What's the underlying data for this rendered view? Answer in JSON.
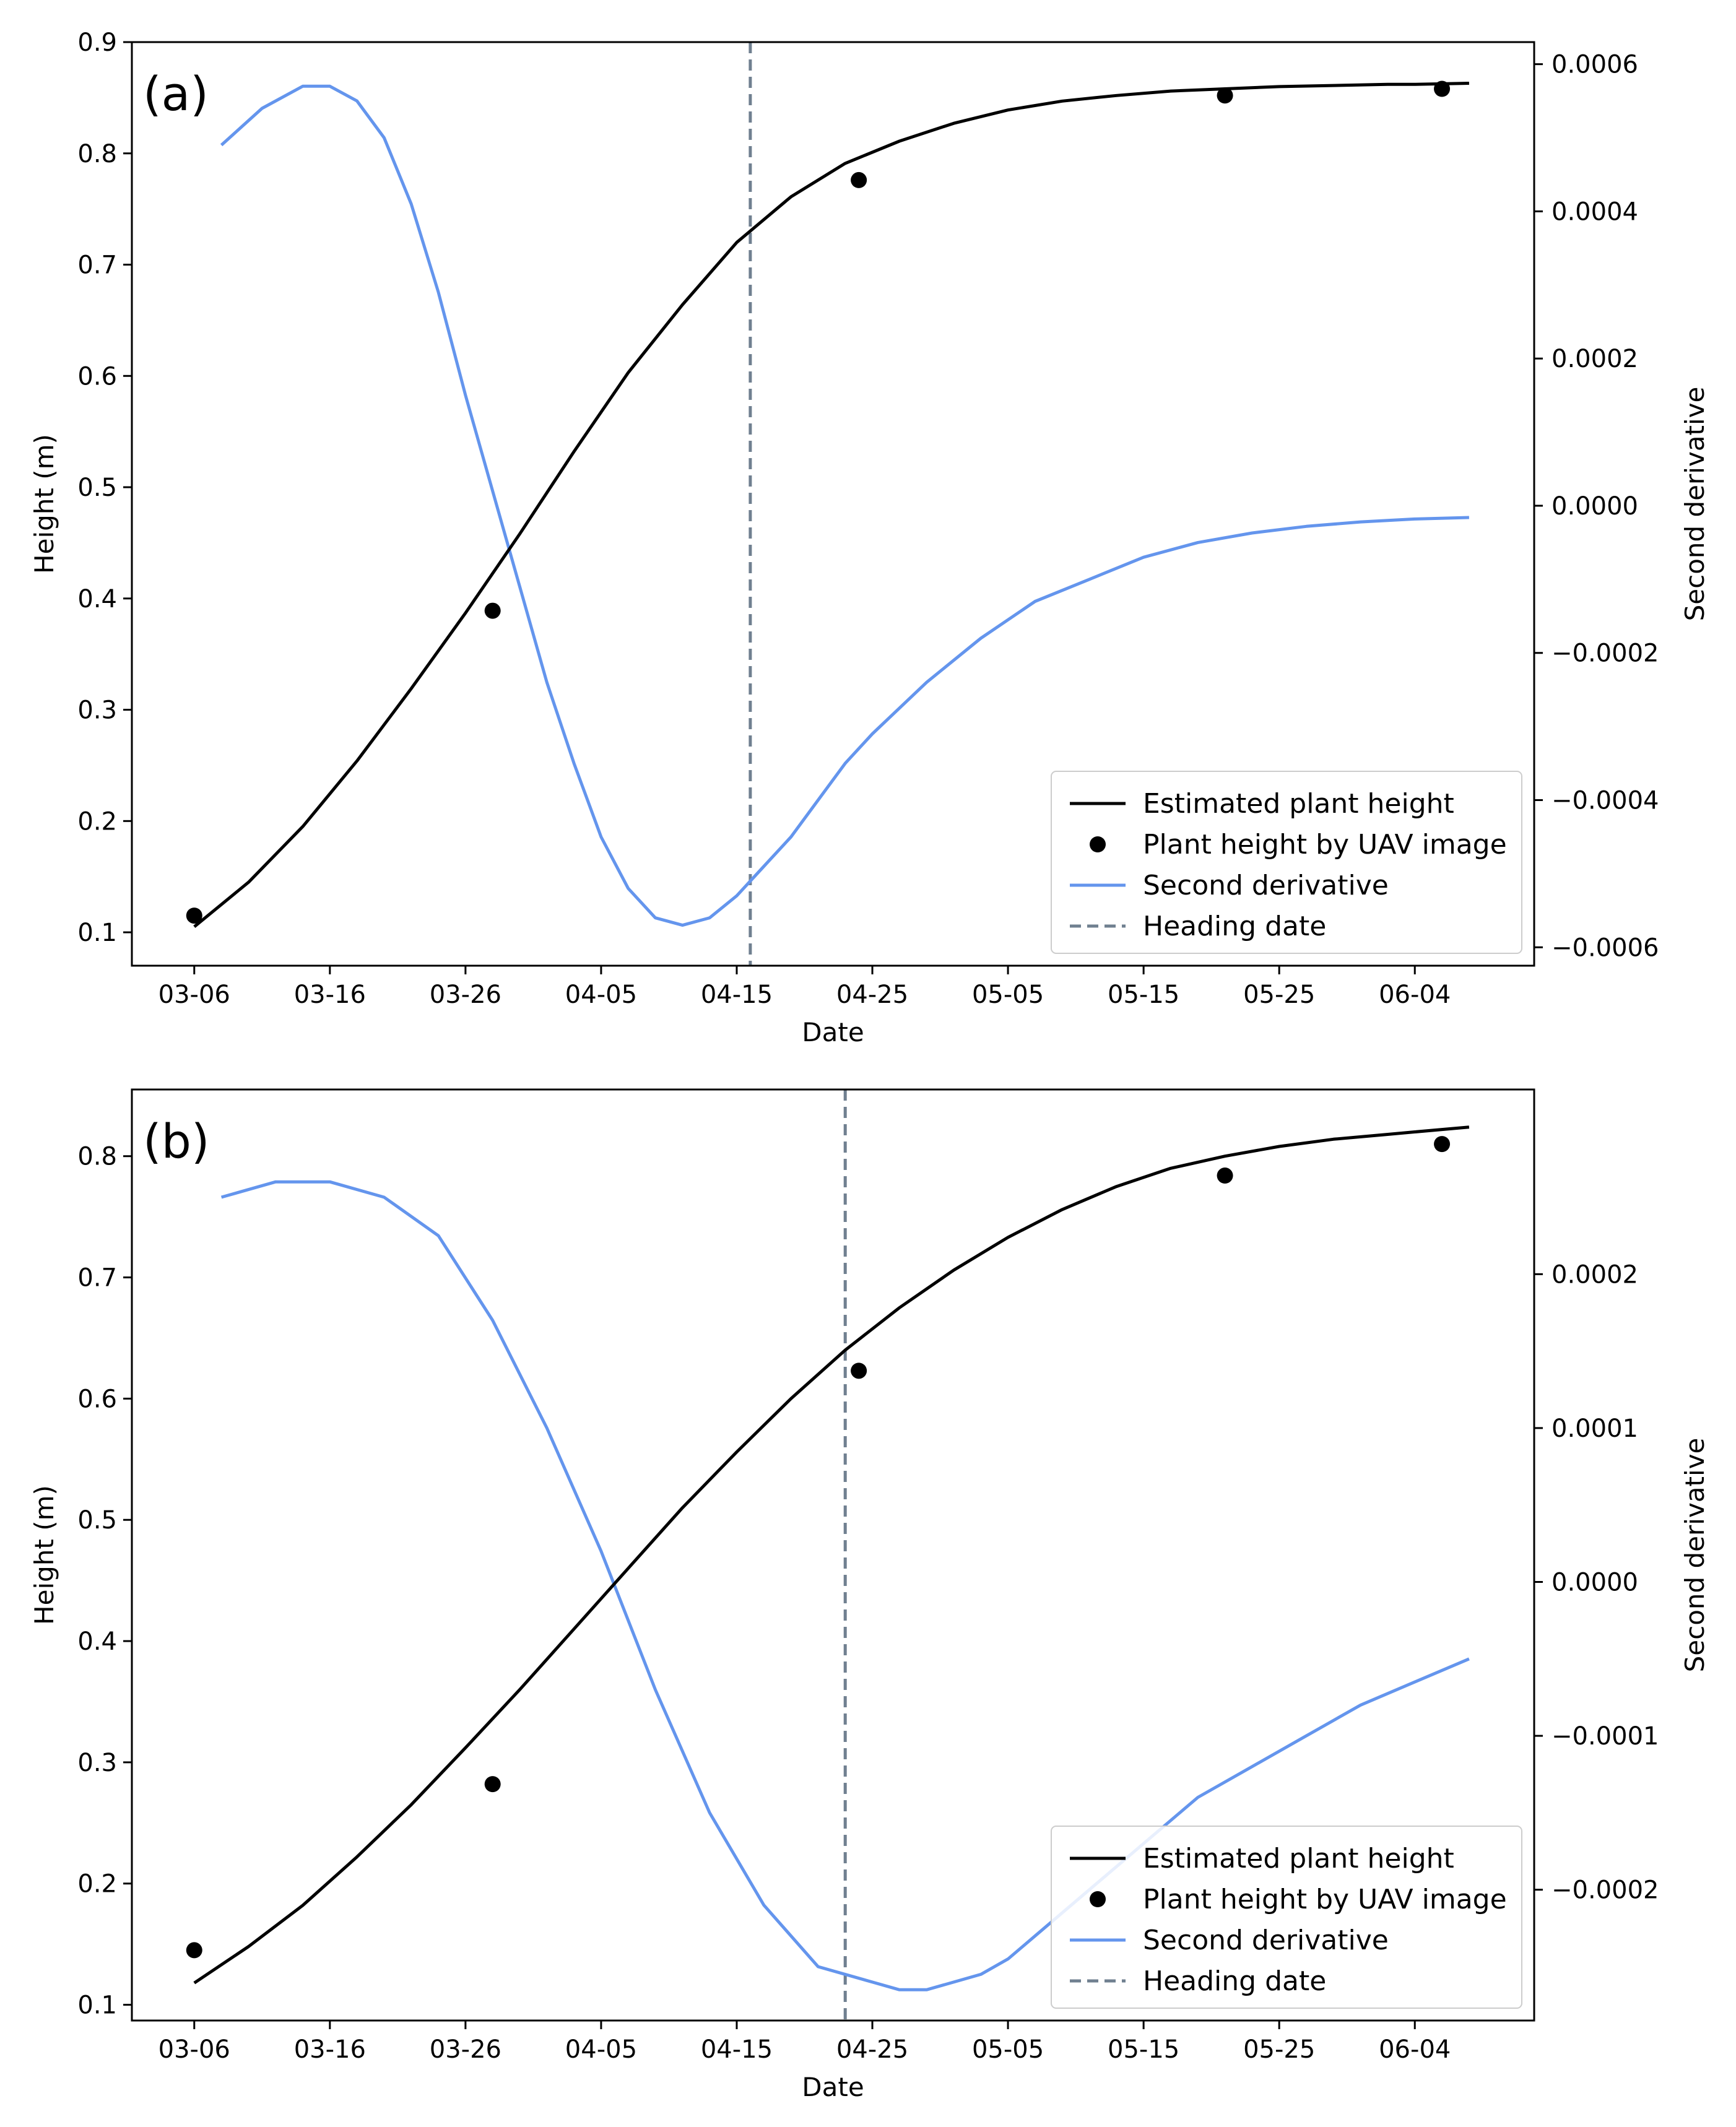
{
  "colors": {
    "height_curve": "#000000",
    "uav_points": "#000000",
    "second_derivative": "#6495ED",
    "heading_line": "#708090",
    "legend_border": "#cccccc"
  },
  "chart_data": [
    {
      "panel_label": "(a)",
      "type": "line",
      "xlabel": "Date",
      "ylabel": "Height (m)",
      "y2label": "Second derivative",
      "x_unit": "days since 03-06",
      "xlim": [
        -4.6,
        98.8
      ],
      "ylim": [
        0.07,
        0.9
      ],
      "y2lim": [
        -0.000625,
        0.00063
      ],
      "x_ticks": [
        0,
        10,
        20,
        30,
        40,
        50,
        60,
        70,
        80,
        90
      ],
      "x_tick_labels": [
        "03-06",
        "03-16",
        "03-26",
        "04-05",
        "04-15",
        "04-25",
        "05-05",
        "05-15",
        "05-25",
        "06-04"
      ],
      "y_ticks": [
        0.1,
        0.2,
        0.3,
        0.4,
        0.5,
        0.6,
        0.7,
        0.8,
        0.9
      ],
      "y_tick_labels": [
        "0.1",
        "0.2",
        "0.3",
        "0.4",
        "0.5",
        "0.6",
        "0.7",
        "0.8",
        "0.9"
      ],
      "y2_ticks": [
        -0.0006,
        -0.0004,
        -0.0002,
        0.0,
        0.0002,
        0.0004,
        0.0006
      ],
      "y2_tick_labels": [
        "−0.0006",
        "−0.0004",
        "−0.0002",
        "0.0000",
        "0.0002",
        "0.0004",
        "0.0006"
      ],
      "series": [
        {
          "name": "Estimated plant height",
          "axis": "left",
          "style": "line",
          "x": [
            0,
            4,
            8,
            12,
            16,
            20,
            24,
            28,
            32,
            36,
            40,
            44,
            48,
            52,
            56,
            60,
            64,
            68,
            72,
            76,
            80,
            84,
            88,
            90,
            94
          ],
          "y": [
            0.105,
            0.145,
            0.195,
            0.254,
            0.319,
            0.387,
            0.458,
            0.532,
            0.603,
            0.664,
            0.72,
            0.761,
            0.791,
            0.811,
            0.827,
            0.839,
            0.847,
            0.852,
            0.856,
            0.858,
            0.86,
            0.861,
            0.862,
            0.862,
            0.863
          ]
        },
        {
          "name": "Plant height by UAV image",
          "axis": "left",
          "style": "scatter",
          "x": [
            0,
            22,
            49,
            76,
            92
          ],
          "y": [
            0.115,
            0.389,
            0.776,
            0.852,
            0.858
          ]
        },
        {
          "name": "Second derivative",
          "axis": "right",
          "style": "line",
          "x": [
            2,
            5,
            8,
            10,
            12,
            14,
            16,
            18,
            20,
            22,
            24,
            26,
            28,
            30,
            32,
            34,
            36,
            38,
            40,
            42,
            44,
            46,
            48,
            50,
            54,
            58,
            62,
            66,
            70,
            74,
            78,
            82,
            86,
            90,
            94
          ],
          "y": [
            0.00049,
            0.00054,
            0.00057,
            0.00057,
            0.00055,
            0.0005,
            0.00041,
            0.00029,
            0.00015,
            2e-05,
            -0.00011,
            -0.00024,
            -0.00035,
            -0.00045,
            -0.00052,
            -0.00056,
            -0.00057,
            -0.00056,
            -0.00053,
            -0.00049,
            -0.00045,
            -0.0004,
            -0.00035,
            -0.00031,
            -0.00024,
            -0.00018,
            -0.00013,
            -0.0001,
            -7e-05,
            -5e-05,
            -3.7e-05,
            -2.8e-05,
            -2.2e-05,
            -1.8e-05,
            -1.6e-05
          ]
        },
        {
          "name": "Heading date",
          "axis": "left",
          "style": "vline",
          "x": 41
        }
      ],
      "legend": {
        "location": "lower right",
        "entries": [
          "Estimated plant height",
          "Plant height by UAV image",
          "Second derivative",
          "Heading date"
        ]
      }
    },
    {
      "panel_label": "(b)",
      "type": "line",
      "xlabel": "Date",
      "ylabel": "Height (m)",
      "y2label": "Second derivative",
      "x_unit": "days since 03-06",
      "xlim": [
        -4.6,
        98.8
      ],
      "ylim": [
        0.087,
        0.855
      ],
      "y2lim": [
        -0.000285,
        0.00032
      ],
      "x_ticks": [
        0,
        10,
        20,
        30,
        40,
        50,
        60,
        70,
        80,
        90
      ],
      "x_tick_labels": [
        "03-06",
        "03-16",
        "03-26",
        "04-05",
        "04-15",
        "04-25",
        "05-05",
        "05-15",
        "05-25",
        "06-04"
      ],
      "y_ticks": [
        0.1,
        0.2,
        0.3,
        0.4,
        0.5,
        0.6,
        0.7,
        0.8
      ],
      "y_tick_labels": [
        "0.1",
        "0.2",
        "0.3",
        "0.4",
        "0.5",
        "0.6",
        "0.7",
        "0.8"
      ],
      "y2_ticks": [
        -0.0002,
        -0.0001,
        0.0,
        0.0001,
        0.0002
      ],
      "y2_tick_labels": [
        "−0.0002",
        "−0.0001",
        "0.0000",
        "0.0001",
        "0.0002"
      ],
      "series": [
        {
          "name": "Estimated plant height",
          "axis": "left",
          "style": "line",
          "x": [
            0,
            4,
            8,
            12,
            16,
            20,
            24,
            28,
            32,
            36,
            40,
            44,
            48,
            52,
            56,
            60,
            64,
            68,
            72,
            76,
            80,
            84,
            88,
            90,
            94
          ],
          "y": [
            0.118,
            0.148,
            0.182,
            0.222,
            0.265,
            0.312,
            0.36,
            0.41,
            0.46,
            0.51,
            0.556,
            0.6,
            0.64,
            0.675,
            0.706,
            0.733,
            0.756,
            0.775,
            0.79,
            0.8,
            0.808,
            0.814,
            0.818,
            0.82,
            0.824
          ]
        },
        {
          "name": "Plant height by UAV image",
          "axis": "left",
          "style": "scatter",
          "x": [
            0,
            22,
            49,
            76,
            92
          ],
          "y": [
            0.145,
            0.282,
            0.623,
            0.784,
            0.81
          ]
        },
        {
          "name": "Second derivative",
          "axis": "right",
          "style": "line",
          "x": [
            2,
            6,
            10,
            14,
            18,
            22,
            26,
            30,
            34,
            38,
            42,
            46,
            50,
            52,
            54,
            56,
            58,
            60,
            62,
            66,
            70,
            74,
            78,
            82,
            86,
            90,
            94
          ],
          "y": [
            0.00025,
            0.00026,
            0.00026,
            0.00025,
            0.000225,
            0.00017,
            0.0001,
            2e-05,
            -7e-05,
            -0.00015,
            -0.00021,
            -0.00025,
            -0.00026,
            -0.000265,
            -0.000265,
            -0.00026,
            -0.000255,
            -0.000245,
            -0.00023,
            -0.0002,
            -0.00017,
            -0.00014,
            -0.00012,
            -0.0001,
            -8e-05,
            -6.5e-05,
            -5e-05
          ]
        },
        {
          "name": "Heading date",
          "axis": "left",
          "style": "vline",
          "x": 48
        }
      ],
      "legend": {
        "location": "lower right",
        "entries": [
          "Estimated plant height",
          "Plant height by UAV image",
          "Second derivative",
          "Heading date"
        ]
      }
    }
  ]
}
